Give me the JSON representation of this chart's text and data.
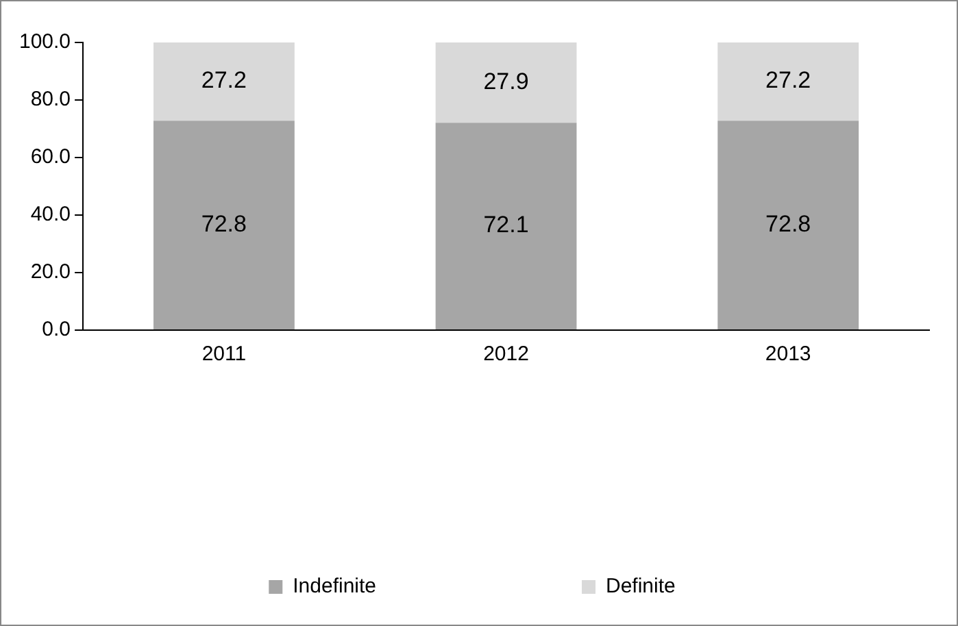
{
  "chart_data": {
    "type": "bar",
    "stacked": true,
    "categories": [
      "2011",
      "2012",
      "2013"
    ],
    "series": [
      {
        "name": "Indefinite",
        "color": "#a6a6a6",
        "values": [
          72.8,
          72.1,
          72.8
        ]
      },
      {
        "name": "Definite",
        "color": "#d9d9d9",
        "values": [
          27.2,
          27.9,
          27.2
        ]
      }
    ],
    "ylim": [
      0,
      100
    ],
    "yticks": [
      {
        "value": 0,
        "label": "0.0"
      },
      {
        "value": 20,
        "label": "20.0"
      },
      {
        "value": 40,
        "label": "40.0"
      },
      {
        "value": 60,
        "label": "60.0"
      },
      {
        "value": 80,
        "label": "80.0"
      },
      {
        "value": 100,
        "label": "100.0"
      }
    ],
    "grid": false,
    "legend": "bottom",
    "data_labels": true
  }
}
